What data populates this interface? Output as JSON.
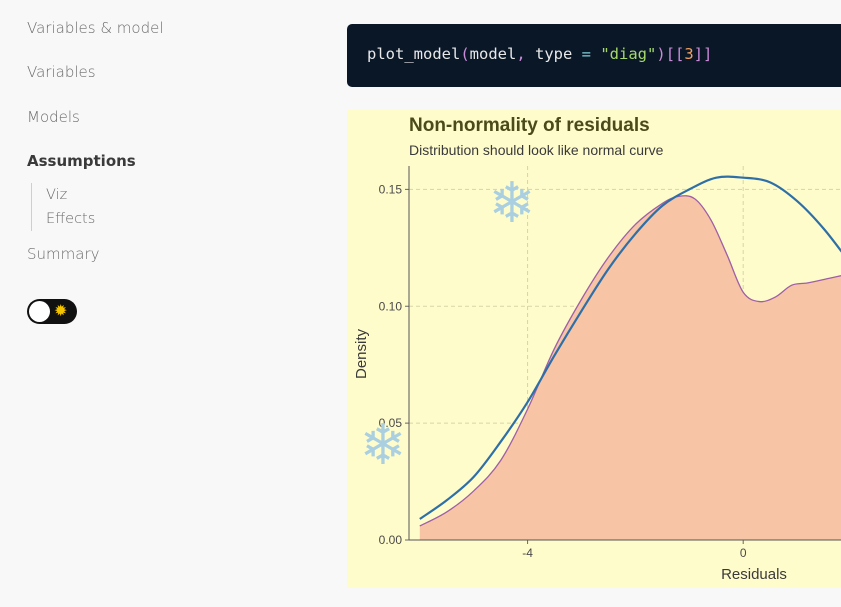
{
  "sidebar": {
    "items": [
      {
        "label": "Variables & model",
        "active": false
      },
      {
        "label": "Variables",
        "active": false
      },
      {
        "label": "Models",
        "active": false
      },
      {
        "label": "Assumptions",
        "active": true
      },
      {
        "label": "Summary",
        "active": false
      }
    ],
    "subitems": [
      {
        "label": "Viz"
      },
      {
        "label": "Effects"
      }
    ],
    "theme_toggle": {
      "knob_icon": "circle",
      "icon": "sun-icon",
      "icon_glyph": "✹"
    }
  },
  "code": {
    "fn": "plot_model",
    "open": "(",
    "arg1": "model",
    "comma": ", ",
    "param": "type",
    "eq": " = ",
    "str": "\"diag\"",
    "close": ")",
    "idx_open": "[[",
    "idx_num": "3",
    "idx_close": "]]"
  },
  "decorations": {
    "snowflake_glyph": "❄"
  },
  "chart_data": {
    "type": "area",
    "title": "Non-normality of residuals",
    "subtitle": "Distribution should look like normal curve",
    "xlabel": "Residuals",
    "ylabel": "Density",
    "xlim": [
      -6.2,
      2.0
    ],
    "ylim": [
      0,
      0.16
    ],
    "x_ticks": [
      {
        "value": -4,
        "label": "-4"
      },
      {
        "value": 0,
        "label": "0"
      }
    ],
    "y_ticks": [
      {
        "value": 0.0,
        "label": "0.00"
      },
      {
        "value": 0.05,
        "label": "0.05"
      },
      {
        "value": 0.1,
        "label": "0.10"
      },
      {
        "value": 0.15,
        "label": "0.15"
      }
    ],
    "grid": true,
    "colors": {
      "fill": "#f7c4a5",
      "density_line": "#9e5fa6",
      "normal_line": "#2e6fa8",
      "grid": "#d7d3a8",
      "background": "#fffccc"
    },
    "series": [
      {
        "kind": "density",
        "x": [
          -6.0,
          -5.5,
          -5.0,
          -4.5,
          -4.0,
          -3.5,
          -3.0,
          -2.5,
          -2.0,
          -1.5,
          -1.2,
          -0.9,
          -0.6,
          -0.3,
          0.0,
          0.3,
          0.6,
          0.9,
          1.2,
          1.6,
          2.0
        ],
        "y": [
          0.006,
          0.012,
          0.021,
          0.034,
          0.056,
          0.082,
          0.103,
          0.121,
          0.135,
          0.144,
          0.147,
          0.146,
          0.137,
          0.122,
          0.106,
          0.102,
          0.104,
          0.109,
          0.11,
          0.112,
          0.114
        ]
      },
      {
        "kind": "normal",
        "x": [
          -6.0,
          -5.5,
          -5.0,
          -4.5,
          -4.0,
          -3.5,
          -3.0,
          -2.5,
          -2.0,
          -1.5,
          -1.0,
          -0.5,
          0.0,
          0.5,
          1.0,
          1.5,
          2.0
        ],
        "y": [
          0.009,
          0.017,
          0.027,
          0.042,
          0.059,
          0.079,
          0.098,
          0.116,
          0.131,
          0.143,
          0.15,
          0.155,
          0.155,
          0.153,
          0.145,
          0.133,
          0.118
        ]
      }
    ]
  }
}
